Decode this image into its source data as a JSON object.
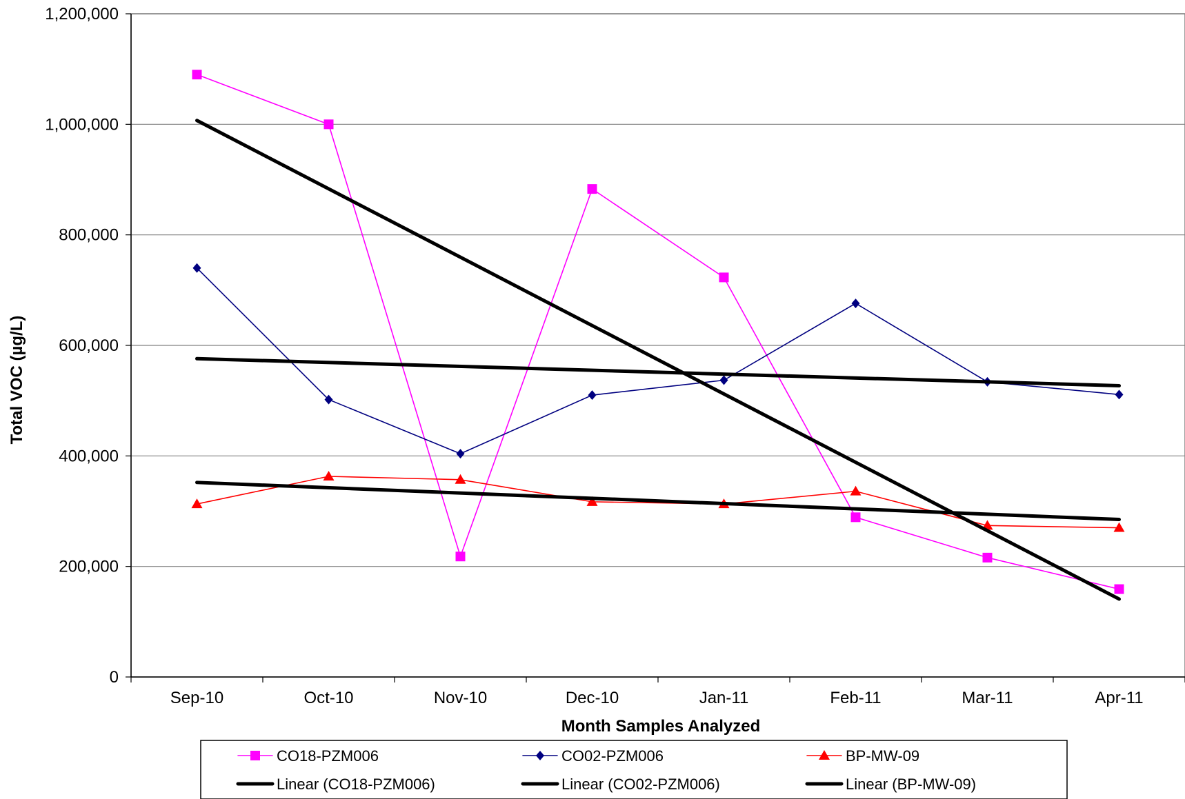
{
  "chart_data": {
    "type": "line",
    "xlabel": "Month Samples Analyzed",
    "ylabel": "Total VOC (µg/L)",
    "categories": [
      "Sep-10",
      "Oct-10",
      "Nov-10",
      "Dec-10",
      "Jan-11",
      "Feb-11",
      "Mar-11",
      "Apr-11"
    ],
    "ylim": [
      0,
      1200000
    ],
    "yticks": [
      0,
      200000,
      400000,
      600000,
      800000,
      1000000,
      1200000
    ],
    "ytick_labels": [
      "0",
      "200,000",
      "400,000",
      "600,000",
      "800,000",
      "1,000,000",
      "1,200,000"
    ],
    "grid": "horizontal",
    "legend_position": "bottom",
    "series": [
      {
        "name": "CO18-PZM006",
        "color": "#ff00ff",
        "marker": "square",
        "values": [
          1090000,
          1000000,
          218000,
          883000,
          723000,
          289000,
          216000,
          159000
        ]
      },
      {
        "name": "CO02-PZM006",
        "color": "#000080",
        "marker": "diamond",
        "values": [
          740000,
          502000,
          404000,
          510000,
          537000,
          676000,
          534000,
          511000
        ]
      },
      {
        "name": "BP-MW-09",
        "color": "#ff0000",
        "marker": "triangle",
        "values": [
          313000,
          363000,
          357000,
          317000,
          313000,
          336000,
          274000,
          270000
        ]
      }
    ],
    "trendlines": [
      {
        "name": "Linear (CO18-PZM006)",
        "color": "#000000",
        "start": 1007000,
        "end": 141000
      },
      {
        "name": "Linear (CO02-PZM006)",
        "color": "#000000",
        "start": 576000,
        "end": 527000
      },
      {
        "name": "Linear (BP-MW-09)",
        "color": "#000000",
        "start": 352000,
        "end": 285000
      }
    ]
  }
}
